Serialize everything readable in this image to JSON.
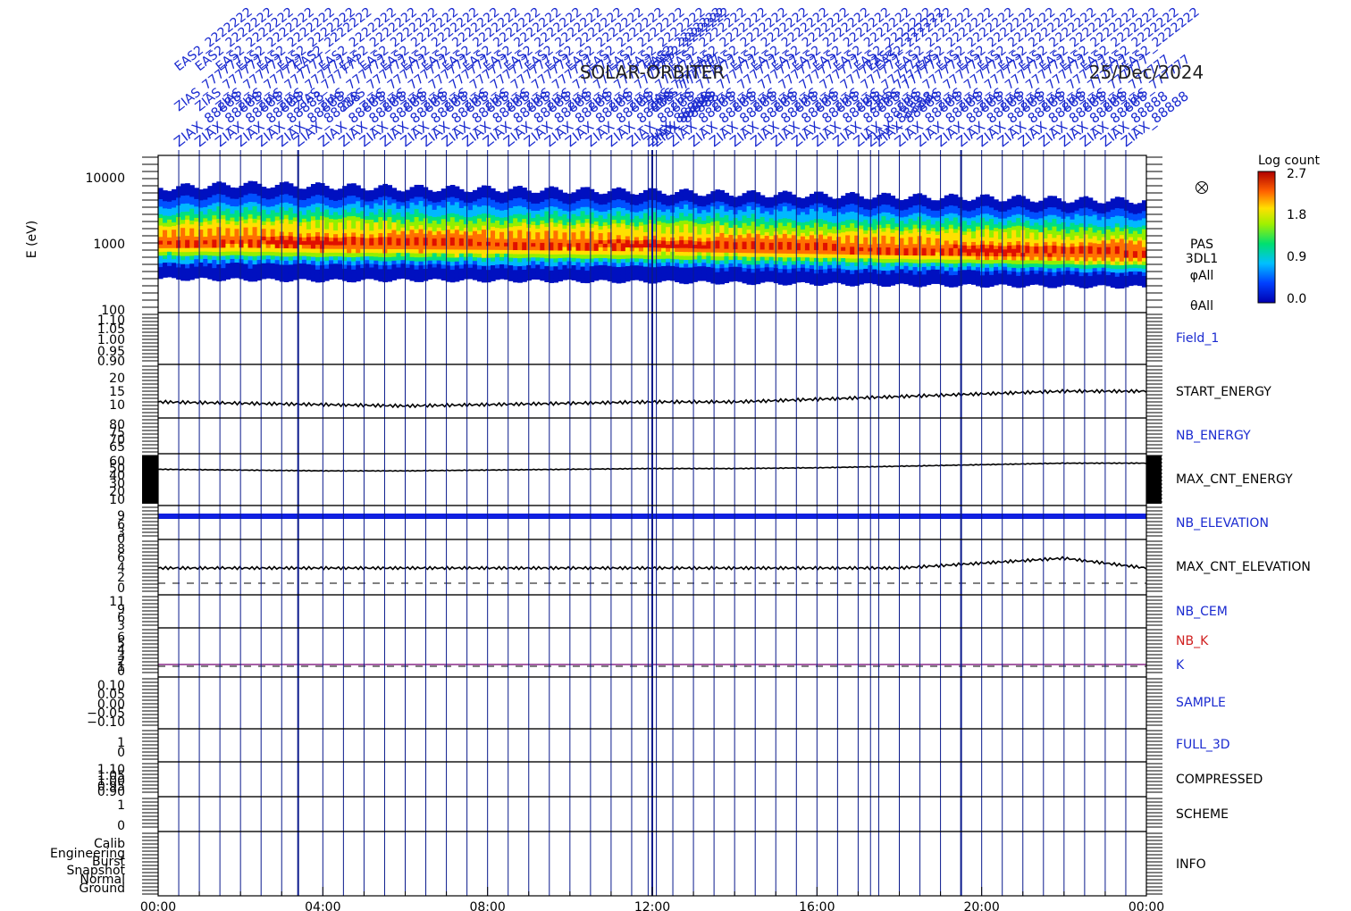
{
  "header": {
    "mission": "SOLAR-ORBITER",
    "date": "25/Dec/2024"
  },
  "colorbar": {
    "title": "Log count",
    "ticks": [
      "2.7",
      "1.8",
      "0.9",
      "0.0"
    ]
  },
  "time_axis": {
    "ticks": [
      "00:00",
      "04:00",
      "08:00",
      "12:00",
      "16:00",
      "20:00",
      "00:00"
    ]
  },
  "colors": {
    "frame": "#000000",
    "markers": "#0a1a8c",
    "label_blue": "#1a2ad0",
    "label_red": "#d02020",
    "k_line": "#8a2a8a",
    "elevation_band": "#1020e0"
  },
  "marker_labels": {
    "row_a": "EAS2_2222222",
    "row_b": "ZIAS_777777",
    "row_c": "ZIAX_88888"
  },
  "panels": [
    {
      "id": "spectrogram",
      "ylabel": "E (eV)",
      "yticks": [
        "10000",
        "1000",
        "100"
      ],
      "label_lines": [
        "PAS",
        "3DL1",
        "φAll",
        "θAll"
      ],
      "label_color": "black"
    },
    {
      "id": "field1",
      "yticks": [
        "1.10",
        "1.05",
        "1.00",
        "0.95",
        "0.90"
      ],
      "label": "Field_1",
      "label_color": "blue"
    },
    {
      "id": "start_energy",
      "yticks": [
        "20",
        "15",
        "10"
      ],
      "label": "START_ENERGY",
      "label_color": "black"
    },
    {
      "id": "nb_energy",
      "yticks": [
        "80",
        "75",
        "70",
        "65"
      ],
      "label": "NB_ENERGY",
      "label_color": "blue"
    },
    {
      "id": "max_cnt_energy",
      "yticks": [
        "60",
        "50",
        "40",
        "30",
        "20",
        "10"
      ],
      "label": "MAX_CNT_ENERGY",
      "label_color": "black"
    },
    {
      "id": "nb_elevation",
      "yticks": [
        "9",
        "6",
        "3",
        "0"
      ],
      "label": "NB_ELEVATION",
      "label_color": "blue"
    },
    {
      "id": "max_cnt_elevation",
      "yticks": [
        "8",
        "6",
        "4",
        "2",
        "0"
      ],
      "label": "MAX_CNT_ELEVATION",
      "label_color": "black"
    },
    {
      "id": "nb_cem",
      "yticks": [
        "11",
        "9",
        "6",
        "3"
      ],
      "label": "NB_CEM",
      "label_color": "blue"
    },
    {
      "id": "nb_k",
      "yticks": [
        "6",
        "5",
        "4",
        "3",
        "2",
        "1",
        "0"
      ],
      "label": "NB_K",
      "label2": "K",
      "label_color": "red"
    },
    {
      "id": "sample",
      "yticks": [
        "0.10",
        "0.05",
        "0.00",
        "−0.05",
        "−0.10"
      ],
      "label": "SAMPLE",
      "label_color": "blue"
    },
    {
      "id": "full_3d",
      "yticks": [
        "1",
        "0"
      ],
      "label": "FULL_3D",
      "label_color": "blue"
    },
    {
      "id": "compressed",
      "yticks": [
        "1.10",
        "1.05",
        "1.00",
        "0.95",
        "0.90"
      ],
      "label": "COMPRESSED",
      "label_color": "black"
    },
    {
      "id": "scheme",
      "yticks": [
        "1",
        "0"
      ],
      "label": "SCHEME",
      "label_color": "black"
    },
    {
      "id": "info",
      "yticks": [
        "Calib",
        "Engineering",
        "Burst",
        "Snapshot",
        "Normal",
        "Ground"
      ],
      "label": "INFO",
      "label_color": "black"
    }
  ],
  "chart_data": {
    "type": "heatmap",
    "title": "SOLAR-ORBITER",
    "date": "25/Dec/2024",
    "xlabel": "",
    "xlim": [
      "00:00",
      "24:00"
    ],
    "spectrogram": {
      "ylabel": "E (eV)",
      "ylim": [
        100,
        20000
      ],
      "yscale": "log",
      "colorbar_label": "Log count",
      "color_range": [
        0.0,
        2.7
      ],
      "peak_energy_track": {
        "hours": [
          0,
          2,
          4,
          6,
          8,
          10,
          12,
          14,
          16,
          18,
          20,
          22,
          24
        ],
        "energy_eV": [
          1000,
          1050,
          1000,
          980,
          950,
          930,
          920,
          880,
          830,
          780,
          760,
          720,
          680
        ]
      },
      "lower_envelope_eV": [
        300,
        290,
        280,
        285,
        280,
        275,
        270,
        260,
        250,
        240,
        235,
        230,
        225
      ],
      "upper_envelope_eV": [
        7000,
        8000,
        7500,
        7000,
        6800,
        6500,
        6200,
        5800,
        5500,
        5200,
        5000,
        4700,
        4500
      ]
    },
    "series": [
      {
        "name": "START_ENERGY",
        "hours": [
          0,
          2,
          4,
          6,
          8,
          10,
          12,
          14,
          16,
          18,
          20,
          22,
          24
        ],
        "values": [
          11,
          10.5,
          10,
          9.5,
          10,
          10.5,
          11,
          11,
          12,
          13,
          14,
          15,
          15
        ]
      },
      {
        "name": "MAX_CNT_ENERGY",
        "hours": [
          0,
          2,
          4,
          6,
          8,
          10,
          12,
          14,
          16,
          18,
          20,
          22,
          24
        ],
        "values": [
          49,
          48,
          47,
          47,
          48,
          49,
          50,
          50,
          51,
          53,
          55,
          57,
          57
        ]
      },
      {
        "name": "NB_ELEVATION",
        "hours": [
          0,
          24
        ],
        "values": [
          9,
          9
        ]
      },
      {
        "name": "MAX_CNT_ELEVATION",
        "hours": [
          0,
          2,
          4,
          6,
          8,
          10,
          12,
          14,
          16,
          18,
          20,
          22,
          24
        ],
        "values": [
          4,
          4,
          4,
          4,
          4,
          4,
          4,
          4,
          4,
          4,
          5,
          6,
          4
        ]
      },
      {
        "name": "K",
        "hours": [
          0,
          24
        ],
        "values": [
          1,
          1
        ]
      }
    ],
    "marker_times_h": [
      0.5,
      1.0,
      1.5,
      2.0,
      2.5,
      3.0,
      3.4,
      4.0,
      4.5,
      5.0,
      5.5,
      6.0,
      6.5,
      7.0,
      7.5,
      8.0,
      8.5,
      9.0,
      9.5,
      10.0,
      10.5,
      11.0,
      11.5,
      11.9,
      12.0,
      12.1,
      12.5,
      13.0,
      13.5,
      14.0,
      14.5,
      15.0,
      15.5,
      16.0,
      16.5,
      17.0,
      17.3,
      17.5,
      18.0,
      18.5,
      19.0,
      19.5,
      20.0,
      20.5,
      21.0,
      21.5,
      22.0,
      22.5,
      23.0,
      23.5
    ],
    "legend": "none",
    "grid": false
  }
}
